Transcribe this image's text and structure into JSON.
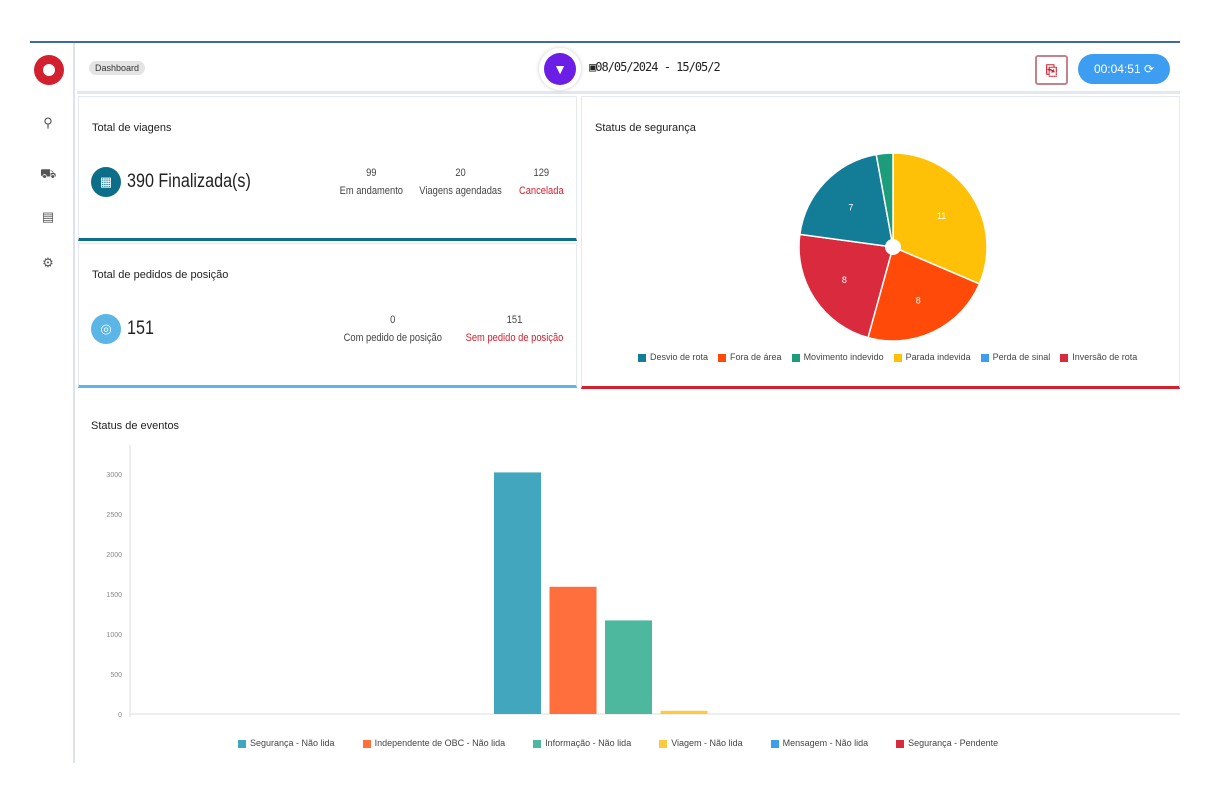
{
  "header": {
    "breadcrumb": "Dashboard",
    "date_range": "08/05/2024 - 15/05/2",
    "timer": "00:04:51 ⟳"
  },
  "sidebar": {
    "items": [
      {
        "icon": "search-icon"
      },
      {
        "icon": "car-icon"
      },
      {
        "icon": "list-icon"
      },
      {
        "icon": "settings-icon"
      }
    ]
  },
  "viagens": {
    "title": "Total de viagens",
    "main_value": "390 Finalizada(s)",
    "stats": [
      {
        "value": "99",
        "label": "Em andamento"
      },
      {
        "value": "20",
        "label": "Viagens agendadas"
      },
      {
        "value": "129",
        "label": "Cancelada"
      }
    ],
    "accent": "#0d6e8a"
  },
  "pedidos": {
    "title": "Total de pedidos de posição",
    "main_value": "151",
    "stats": [
      {
        "value": "0",
        "label": "Com pedido de posição"
      },
      {
        "value": "151",
        "label": "Sem pedido de posição"
      }
    ],
    "accent": "#5bb5e6"
  },
  "chart_data": [
    {
      "type": "pie",
      "title": "Status de segurança",
      "legend_position": "bottom",
      "slices": [
        {
          "label": "Parada indevida",
          "value": 11,
          "color": "#ffc107",
          "show_label": true
        },
        {
          "label": "Fora de área",
          "value": 8,
          "color": "#ff4a0a",
          "show_label": true
        },
        {
          "label": "Inversão de rota",
          "value": 8,
          "color": "#d92a3e",
          "show_label": true
        },
        {
          "label": "Desvio de rota",
          "value": 7,
          "color": "#137c96",
          "show_label": true
        },
        {
          "label": "Movimento indevido",
          "value": 1,
          "color": "#1d9c7c",
          "show_label": false
        },
        {
          "label": "Perda de sinal",
          "value": 0,
          "color": "#3d9df0",
          "show_label": false
        }
      ],
      "legend": [
        {
          "label": "Desvio de rota",
          "color": "#137c96"
        },
        {
          "label": "Fora de área",
          "color": "#ff4a0a"
        },
        {
          "label": "Movimento indevido",
          "color": "#1d9c7c"
        },
        {
          "label": "Parada indevida",
          "color": "#ffc107"
        },
        {
          "label": "Perda de sinal",
          "color": "#3d9df0"
        },
        {
          "label": "Inversão de rota",
          "color": "#d92a3e"
        }
      ],
      "accent": "#d3202f"
    },
    {
      "type": "bar",
      "title": "Status de eventos",
      "ylim": [
        0,
        3000
      ],
      "yticks": [
        "0",
        "500",
        "1000",
        "1500",
        "2000",
        "2500",
        "3000"
      ],
      "legend_position": "bottom",
      "series": [
        {
          "name": "Segurança - Não lida",
          "value": 3020,
          "color": "#43a6bf"
        },
        {
          "name": "Independente de OBC - Não lida",
          "value": 1590,
          "color": "#ff6f3e"
        },
        {
          "name": "Informação - Não lida",
          "value": 1170,
          "color": "#4db89d"
        },
        {
          "name": "Viagem - Não lida",
          "value": 40,
          "color": "#ffc93c"
        },
        {
          "name": "Mensagem - Não lida",
          "value": 0,
          "color": "#3d9df0"
        },
        {
          "name": "Segurança - Pendente",
          "value": 0,
          "color": "#d92a3e"
        }
      ]
    }
  ]
}
